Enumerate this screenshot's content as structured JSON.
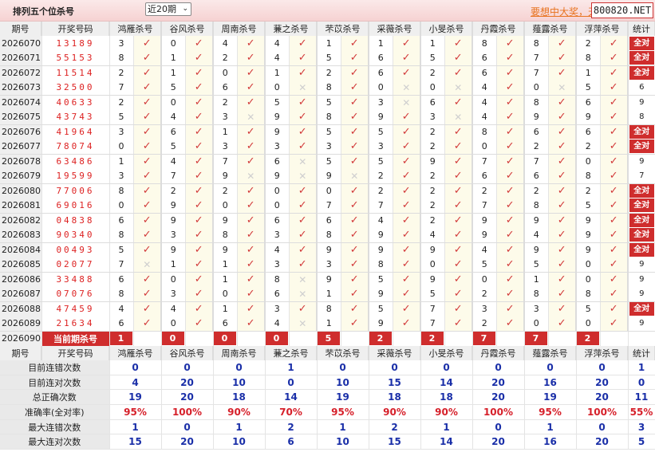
{
  "header": {
    "title": "排列五个位杀号",
    "period_select": "近20期",
    "ad_text": "要想中大奖，天",
    "brand": "800820.NET"
  },
  "columns": {
    "period": "期号",
    "number": "开奖号码",
    "experts": [
      "鸿雁杀号",
      "谷风杀号",
      "周南杀号",
      "蒹之杀号",
      "芣苡杀号",
      "采薇杀号",
      "小旻杀号",
      "丹霞杀号",
      "薤露杀号",
      "浮萍杀号"
    ],
    "stat": "统计"
  },
  "icons": {
    "hit": "check-icon",
    "miss": "cross-icon"
  },
  "colors": {
    "accent": "#cf2d2d",
    "number": "#dd2222",
    "stat_value": "#1a2fa8",
    "percent": "#d6202a"
  },
  "rows": [
    {
      "period": "2026070",
      "number": "13189",
      "kills": [
        [
          3,
          1
        ],
        [
          0,
          1
        ],
        [
          4,
          1
        ],
        [
          4,
          1
        ],
        [
          1,
          1
        ],
        [
          1,
          1
        ],
        [
          1,
          1
        ],
        [
          8,
          1
        ],
        [
          8,
          1
        ],
        [
          2,
          1
        ]
      ],
      "stat": "全对"
    },
    {
      "period": "2026071",
      "number": "55153",
      "kills": [
        [
          8,
          1
        ],
        [
          1,
          1
        ],
        [
          2,
          1
        ],
        [
          4,
          1
        ],
        [
          5,
          1
        ],
        [
          6,
          1
        ],
        [
          5,
          1
        ],
        [
          6,
          1
        ],
        [
          7,
          1
        ],
        [
          8,
          1
        ]
      ],
      "stat": "全对"
    },
    {
      "period": "2026072",
      "number": "11514",
      "kills": [
        [
          2,
          1
        ],
        [
          1,
          1
        ],
        [
          0,
          1
        ],
        [
          1,
          1
        ],
        [
          2,
          1
        ],
        [
          6,
          1
        ],
        [
          2,
          1
        ],
        [
          6,
          1
        ],
        [
          7,
          1
        ],
        [
          1,
          1
        ]
      ],
      "stat": "全对"
    },
    {
      "period": "2026073",
      "number": "32500",
      "kills": [
        [
          7,
          1
        ],
        [
          5,
          1
        ],
        [
          6,
          1
        ],
        [
          0,
          0
        ],
        [
          8,
          1
        ],
        [
          0,
          0
        ],
        [
          0,
          0
        ],
        [
          4,
          1
        ],
        [
          0,
          0
        ],
        [
          5,
          1
        ]
      ],
      "stat": "6"
    },
    {
      "period": "2026074",
      "number": "40633",
      "kills": [
        [
          2,
          1
        ],
        [
          0,
          1
        ],
        [
          2,
          1
        ],
        [
          5,
          1
        ],
        [
          5,
          1
        ],
        [
          3,
          0
        ],
        [
          6,
          1
        ],
        [
          4,
          1
        ],
        [
          8,
          1
        ],
        [
          6,
          1
        ]
      ],
      "stat": "9"
    },
    {
      "period": "2026075",
      "number": "43743",
      "kills": [
        [
          5,
          1
        ],
        [
          4,
          1
        ],
        [
          3,
          0
        ],
        [
          9,
          1
        ],
        [
          8,
          1
        ],
        [
          9,
          1
        ],
        [
          3,
          0
        ],
        [
          4,
          1
        ],
        [
          9,
          1
        ],
        [
          9,
          1
        ]
      ],
      "stat": "8"
    },
    {
      "period": "2026076",
      "number": "41964",
      "kills": [
        [
          3,
          1
        ],
        [
          6,
          1
        ],
        [
          1,
          1
        ],
        [
          9,
          1
        ],
        [
          5,
          1
        ],
        [
          5,
          1
        ],
        [
          2,
          1
        ],
        [
          8,
          1
        ],
        [
          6,
          1
        ],
        [
          6,
          1
        ]
      ],
      "stat": "全对"
    },
    {
      "period": "2026077",
      "number": "78074",
      "kills": [
        [
          0,
          1
        ],
        [
          5,
          1
        ],
        [
          3,
          1
        ],
        [
          3,
          1
        ],
        [
          3,
          1
        ],
        [
          3,
          1
        ],
        [
          2,
          1
        ],
        [
          0,
          1
        ],
        [
          2,
          1
        ],
        [
          2,
          1
        ]
      ],
      "stat": "全对"
    },
    {
      "period": "2026078",
      "number": "63486",
      "kills": [
        [
          1,
          1
        ],
        [
          4,
          1
        ],
        [
          7,
          1
        ],
        [
          6,
          0
        ],
        [
          5,
          1
        ],
        [
          5,
          1
        ],
        [
          9,
          1
        ],
        [
          7,
          1
        ],
        [
          7,
          1
        ],
        [
          0,
          1
        ]
      ],
      "stat": "9"
    },
    {
      "period": "2026079",
      "number": "19599",
      "kills": [
        [
          3,
          1
        ],
        [
          7,
          1
        ],
        [
          9,
          0
        ],
        [
          9,
          0
        ],
        [
          9,
          0
        ],
        [
          2,
          1
        ],
        [
          2,
          1
        ],
        [
          6,
          1
        ],
        [
          6,
          1
        ],
        [
          8,
          1
        ]
      ],
      "stat": "7"
    },
    {
      "period": "2026080",
      "number": "77006",
      "kills": [
        [
          8,
          1
        ],
        [
          2,
          1
        ],
        [
          2,
          1
        ],
        [
          0,
          1
        ],
        [
          0,
          1
        ],
        [
          2,
          1
        ],
        [
          2,
          1
        ],
        [
          2,
          1
        ],
        [
          2,
          1
        ],
        [
          2,
          1
        ]
      ],
      "stat": "全对"
    },
    {
      "period": "2026081",
      "number": "69016",
      "kills": [
        [
          0,
          1
        ],
        [
          9,
          1
        ],
        [
          0,
          1
        ],
        [
          0,
          1
        ],
        [
          7,
          1
        ],
        [
          7,
          1
        ],
        [
          2,
          1
        ],
        [
          7,
          1
        ],
        [
          8,
          1
        ],
        [
          5,
          1
        ]
      ],
      "stat": "全对"
    },
    {
      "period": "2026082",
      "number": "04838",
      "kills": [
        [
          6,
          1
        ],
        [
          9,
          1
        ],
        [
          9,
          1
        ],
        [
          6,
          1
        ],
        [
          6,
          1
        ],
        [
          4,
          1
        ],
        [
          2,
          1
        ],
        [
          9,
          1
        ],
        [
          9,
          1
        ],
        [
          9,
          1
        ]
      ],
      "stat": "全对"
    },
    {
      "period": "2026083",
      "number": "90340",
      "kills": [
        [
          8,
          1
        ],
        [
          3,
          1
        ],
        [
          8,
          1
        ],
        [
          3,
          1
        ],
        [
          8,
          1
        ],
        [
          9,
          1
        ],
        [
          4,
          1
        ],
        [
          9,
          1
        ],
        [
          4,
          1
        ],
        [
          9,
          1
        ]
      ],
      "stat": "全对"
    },
    {
      "period": "2026084",
      "number": "00493",
      "kills": [
        [
          5,
          1
        ],
        [
          9,
          1
        ],
        [
          9,
          1
        ],
        [
          4,
          1
        ],
        [
          9,
          1
        ],
        [
          9,
          1
        ],
        [
          9,
          1
        ],
        [
          4,
          1
        ],
        [
          9,
          1
        ],
        [
          9,
          1
        ]
      ],
      "stat": "全对"
    },
    {
      "period": "2026085",
      "number": "02077",
      "kills": [
        [
          7,
          0
        ],
        [
          1,
          1
        ],
        [
          1,
          1
        ],
        [
          3,
          1
        ],
        [
          3,
          1
        ],
        [
          8,
          1
        ],
        [
          0,
          1
        ],
        [
          5,
          1
        ],
        [
          5,
          1
        ],
        [
          0,
          1
        ]
      ],
      "stat": "9"
    },
    {
      "period": "2026086",
      "number": "33488",
      "kills": [
        [
          6,
          1
        ],
        [
          0,
          1
        ],
        [
          1,
          1
        ],
        [
          8,
          0
        ],
        [
          9,
          1
        ],
        [
          5,
          1
        ],
        [
          9,
          1
        ],
        [
          0,
          1
        ],
        [
          1,
          1
        ],
        [
          0,
          1
        ]
      ],
      "stat": "9"
    },
    {
      "period": "2026087",
      "number": "07076",
      "kills": [
        [
          8,
          1
        ],
        [
          3,
          1
        ],
        [
          0,
          1
        ],
        [
          6,
          0
        ],
        [
          1,
          1
        ],
        [
          9,
          1
        ],
        [
          5,
          1
        ],
        [
          2,
          1
        ],
        [
          8,
          1
        ],
        [
          8,
          1
        ]
      ],
      "stat": "9"
    },
    {
      "period": "2026088",
      "number": "47459",
      "kills": [
        [
          4,
          1
        ],
        [
          4,
          1
        ],
        [
          1,
          1
        ],
        [
          3,
          1
        ],
        [
          8,
          1
        ],
        [
          5,
          1
        ],
        [
          7,
          1
        ],
        [
          3,
          1
        ],
        [
          3,
          1
        ],
        [
          5,
          1
        ]
      ],
      "stat": "全对"
    },
    {
      "period": "2026089",
      "number": "21634",
      "kills": [
        [
          6,
          1
        ],
        [
          0,
          1
        ],
        [
          6,
          1
        ],
        [
          4,
          0
        ],
        [
          1,
          1
        ],
        [
          9,
          1
        ],
        [
          7,
          1
        ],
        [
          2,
          1
        ],
        [
          0,
          1
        ],
        [
          0,
          1
        ]
      ],
      "stat": "9"
    }
  ],
  "current": {
    "period": "2026090",
    "label": "当前期杀号",
    "kills": [
      "1",
      "0",
      "0",
      "0",
      "5",
      "2",
      "2",
      "7",
      "7",
      "2"
    ]
  },
  "stats": [
    {
      "label": "目前连错次数",
      "values": [
        "0",
        "0",
        "0",
        "1",
        "0",
        "0",
        "0",
        "0",
        "0",
        "0"
      ],
      "stat": "1"
    },
    {
      "label": "目前连对次数",
      "values": [
        "4",
        "20",
        "10",
        "0",
        "10",
        "15",
        "14",
        "20",
        "16",
        "20"
      ],
      "stat": "0"
    },
    {
      "label": "总正确次数",
      "values": [
        "19",
        "20",
        "18",
        "14",
        "19",
        "18",
        "18",
        "20",
        "19",
        "20"
      ],
      "stat": "11"
    },
    {
      "label": "准确率(全对率)",
      "values": [
        "95%",
        "100%",
        "90%",
        "70%",
        "95%",
        "90%",
        "90%",
        "100%",
        "95%",
        "100%"
      ],
      "stat": "55%"
    },
    {
      "label": "最大连错次数",
      "values": [
        "1",
        "0",
        "1",
        "2",
        "1",
        "2",
        "1",
        "0",
        "1",
        "0"
      ],
      "stat": "3"
    },
    {
      "label": "最大连对次数",
      "values": [
        "15",
        "20",
        "10",
        "6",
        "10",
        "15",
        "14",
        "20",
        "16",
        "20"
      ],
      "stat": "5"
    }
  ]
}
